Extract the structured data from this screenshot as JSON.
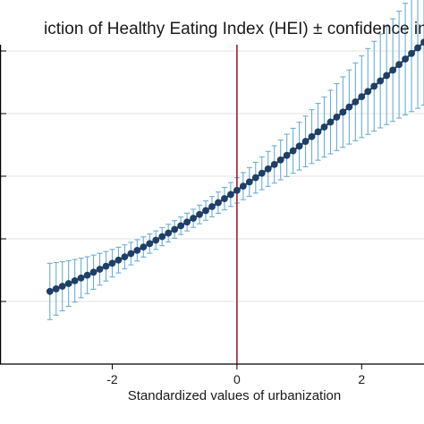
{
  "chart_data": {
    "type": "line",
    "title": "iction of Healthy Eating Index (HEI) ± confidence int",
    "xlabel": "Standardized values of urbanization",
    "ylabel": "",
    "xlim": [
      -3.8,
      3.0
    ],
    "ylim": [
      -1.0,
      4.1
    ],
    "x_ticks": [
      -2,
      0,
      2
    ],
    "x_tick_labels": [
      "-2",
      "0",
      "2"
    ],
    "y_gridlines": [
      0,
      1,
      2,
      3,
      4
    ],
    "grid": "horizontal",
    "reference_line_x": 0,
    "colors": {
      "line": "#1f3f66",
      "marker": "#1f3f66",
      "ci": "#6aaed6",
      "reference": "#a0202e",
      "grid": "#e3e3e3",
      "axis": "#000000"
    },
    "series": [
      {
        "x": [
          -3.0,
          -2.9,
          -2.8,
          -2.7,
          -2.6,
          -2.5,
          -2.4,
          -2.3,
          -2.2,
          -2.1,
          -2.0,
          -1.9,
          -1.8,
          -1.7,
          -1.6,
          -1.5,
          -1.4,
          -1.3,
          -1.2,
          -1.1,
          -1.0,
          -0.9,
          -0.8,
          -0.7,
          -0.6,
          -0.5,
          -0.4,
          -0.3,
          -0.2,
          -0.1,
          0.0,
          0.1,
          0.2,
          0.3,
          0.4,
          0.5,
          0.6,
          0.7,
          0.8,
          0.9,
          1.0,
          1.1,
          1.2,
          1.3,
          1.4,
          1.5,
          1.6,
          1.7,
          1.8,
          1.9,
          2.0,
          2.1,
          2.2,
          2.3,
          2.4,
          2.5,
          2.6,
          2.7,
          2.8,
          2.9,
          3.0
        ],
        "y": [
          0.16,
          0.201,
          0.243,
          0.286,
          0.33,
          0.375,
          0.42,
          0.467,
          0.514,
          0.562,
          0.611,
          0.661,
          0.712,
          0.764,
          0.816,
          0.87,
          0.924,
          0.979,
          1.035,
          1.092,
          1.15,
          1.209,
          1.268,
          1.328,
          1.389,
          1.451,
          1.514,
          1.578,
          1.642,
          1.708,
          1.774,
          1.841,
          1.909,
          1.977,
          2.047,
          2.117,
          2.188,
          2.26,
          2.333,
          2.406,
          2.481,
          2.556,
          2.632,
          2.709,
          2.786,
          2.865,
          2.944,
          3.024,
          3.105,
          3.187,
          3.27,
          3.353,
          3.437,
          3.522,
          3.608,
          3.695,
          3.783,
          3.871,
          3.96,
          4.05,
          4.141
        ],
        "ci_half": [
          0.45,
          0.42,
          0.392,
          0.365,
          0.34,
          0.316,
          0.294,
          0.273,
          0.254,
          0.236,
          0.22,
          0.205,
          0.192,
          0.18,
          0.17,
          0.161,
          0.154,
          0.148,
          0.144,
          0.141,
          0.14,
          0.14,
          0.142,
          0.145,
          0.149,
          0.155,
          0.162,
          0.17,
          0.18,
          0.191,
          0.203,
          0.216,
          0.23,
          0.246,
          0.262,
          0.279,
          0.298,
          0.317,
          0.338,
          0.359,
          0.381,
          0.405,
          0.429,
          0.454,
          0.48,
          0.507,
          0.534,
          0.563,
          0.592,
          0.622,
          0.653,
          0.685,
          0.717,
          0.75,
          0.784,
          0.819,
          0.855,
          0.891,
          0.928,
          0.966,
          1.005
        ]
      }
    ]
  }
}
